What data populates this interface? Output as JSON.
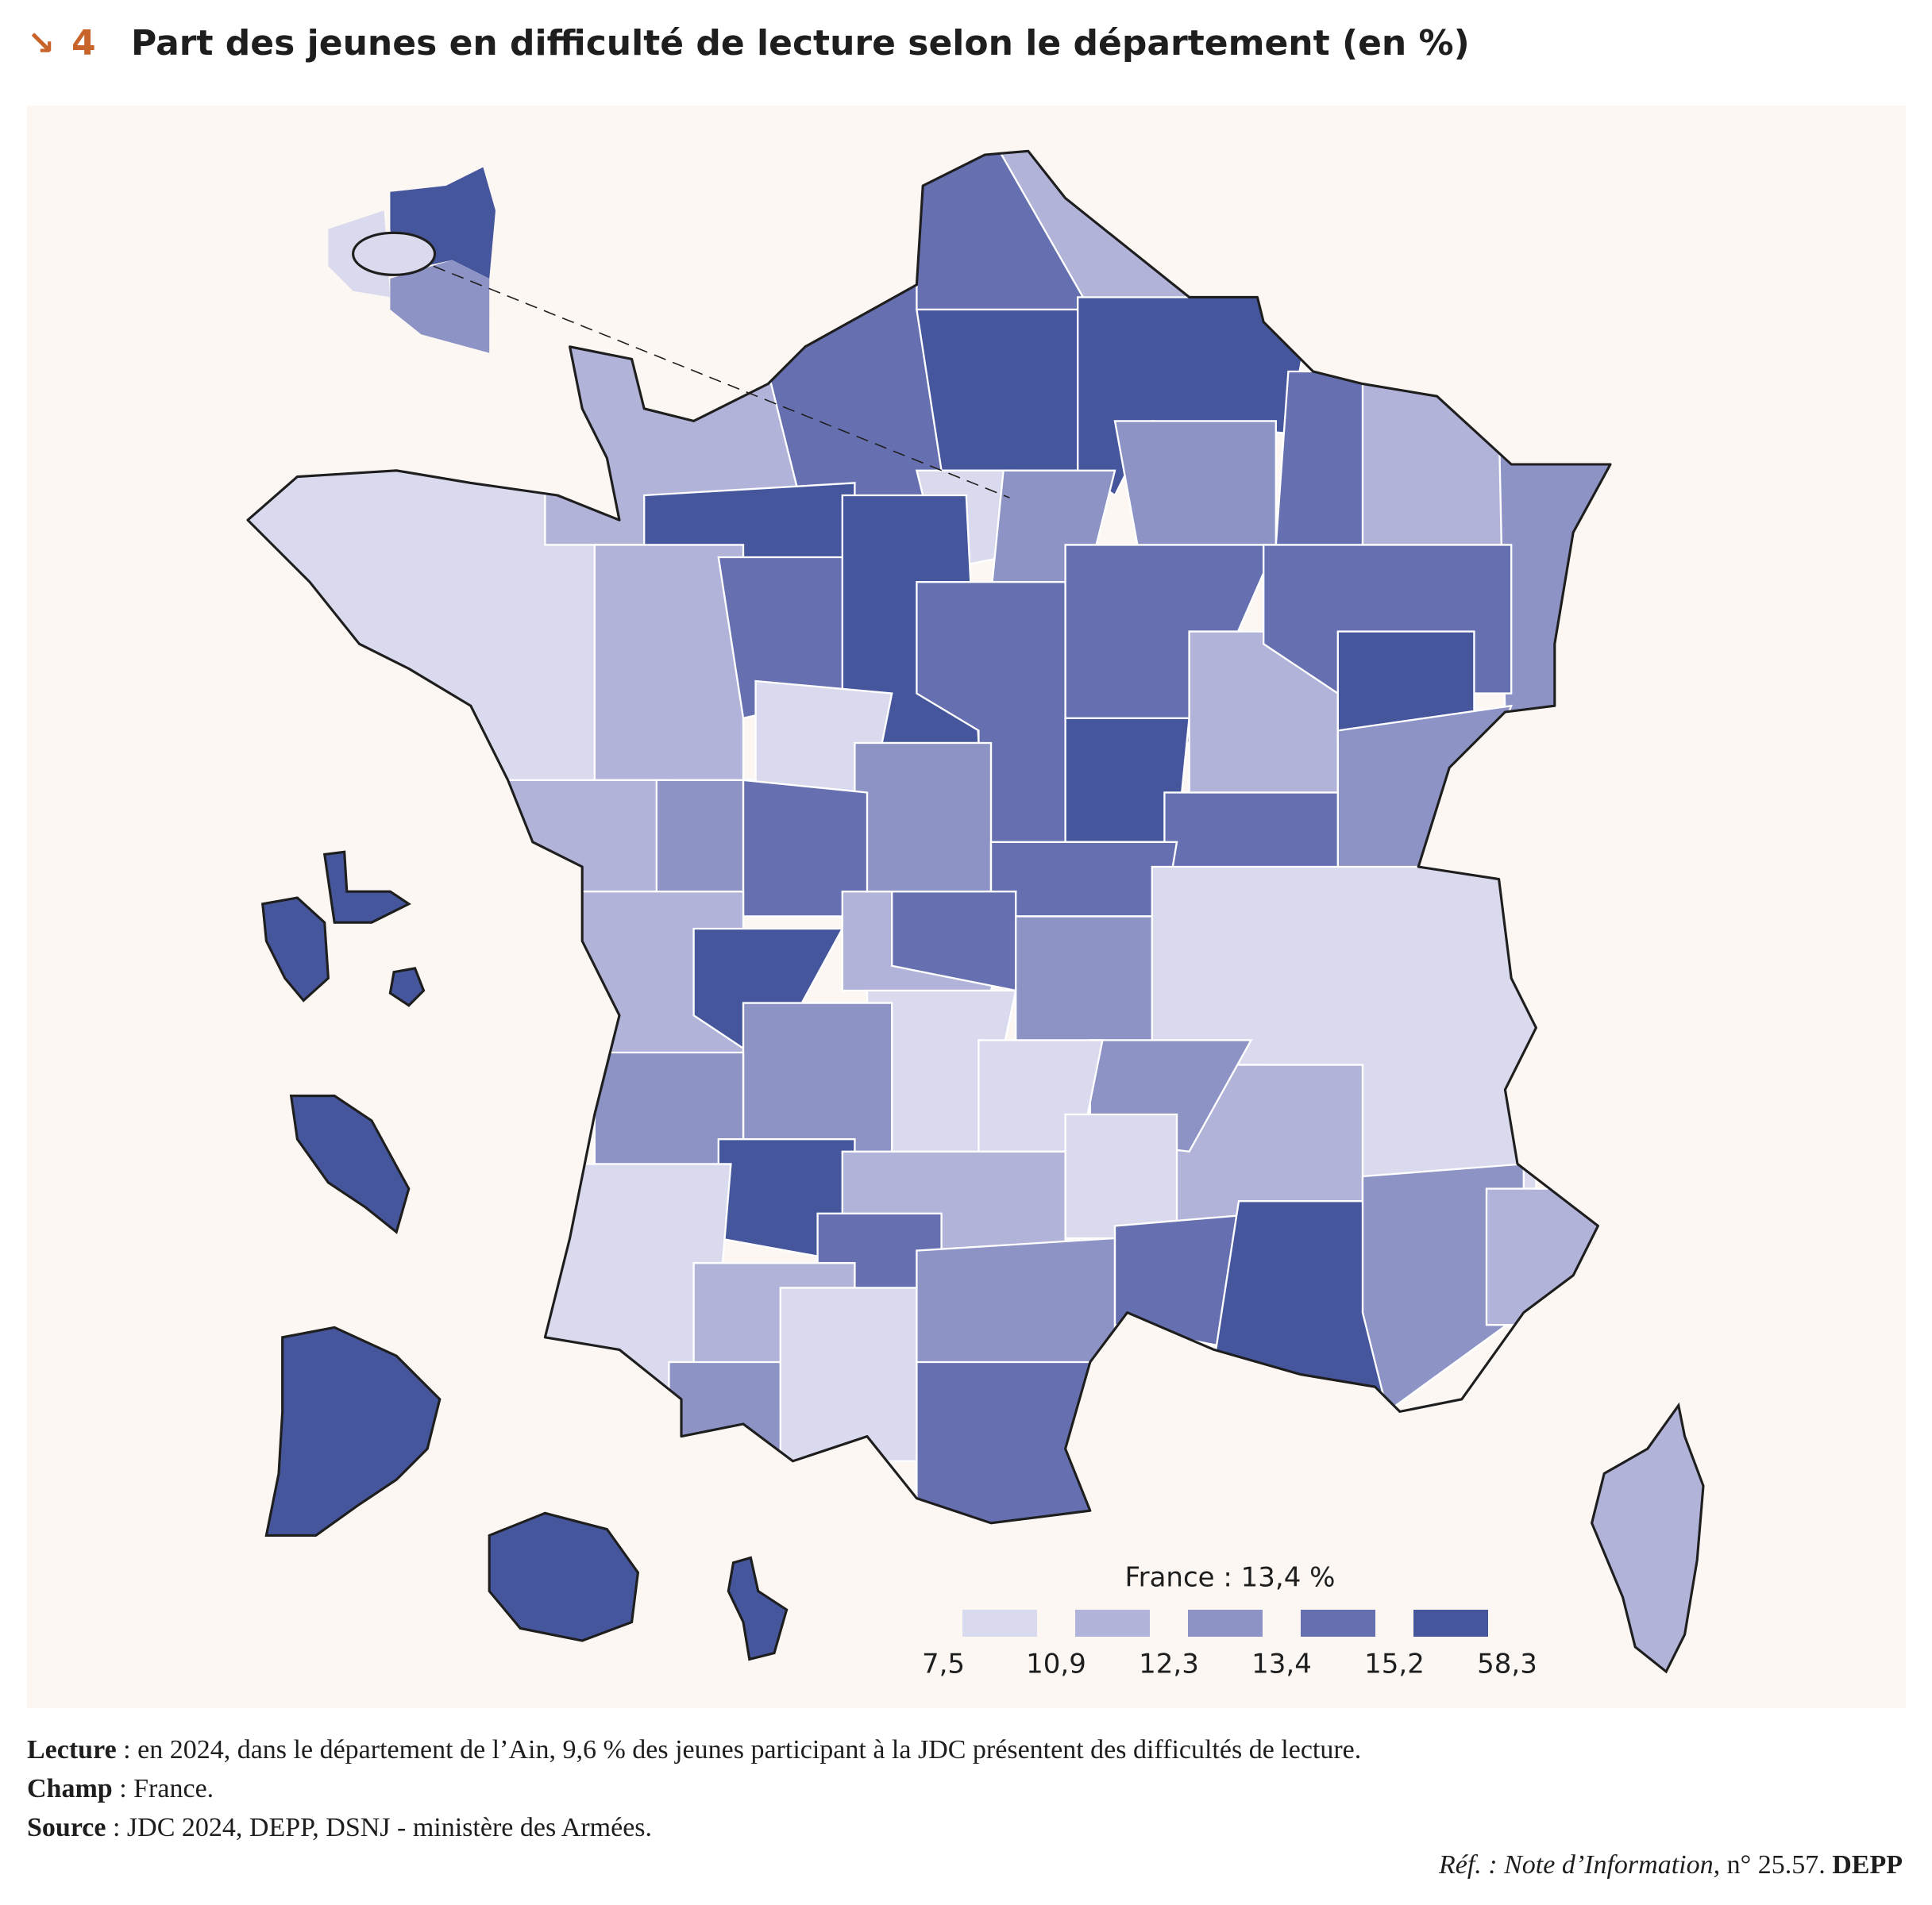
{
  "map": {
    "type": "choropleth",
    "number": "4",
    "title": "Part des jeunes en difficulté de lecture selon le département (en %)",
    "legend": {
      "title": "France : 13,4 %",
      "breaks": [
        {
          "value": 7.5,
          "label": "7,5"
        },
        {
          "value": 10.9,
          "label": "10,9"
        },
        {
          "value": 12.3,
          "label": "12,3"
        },
        {
          "value": 13.4,
          "label": "13,4"
        },
        {
          "value": 15.2,
          "label": "15,2"
        },
        {
          "value": 58.3,
          "label": "58,3"
        }
      ],
      "colors": [
        "#d9daee",
        "#b1b3d9",
        "#8d93c5",
        "#6670b0",
        "#45569c"
      ]
    }
  },
  "notes": [
    {
      "label": "Lecture",
      "text": " : en 2024, dans le département de l’Ain, 9,6 % des jeunes participant à la JDC présentent des difficultés de lecture."
    },
    {
      "label": "Champ",
      "text": " : France."
    },
    {
      "label": "Source",
      "text": " : JDC 2024, DEPP, DSNJ - ministère des Armées."
    }
  ],
  "reference": {
    "prefix": "Réf. :",
    "publication": "Note d’Information,",
    "number": "n° 25.57.",
    "organisation": "DEPP"
  }
}
